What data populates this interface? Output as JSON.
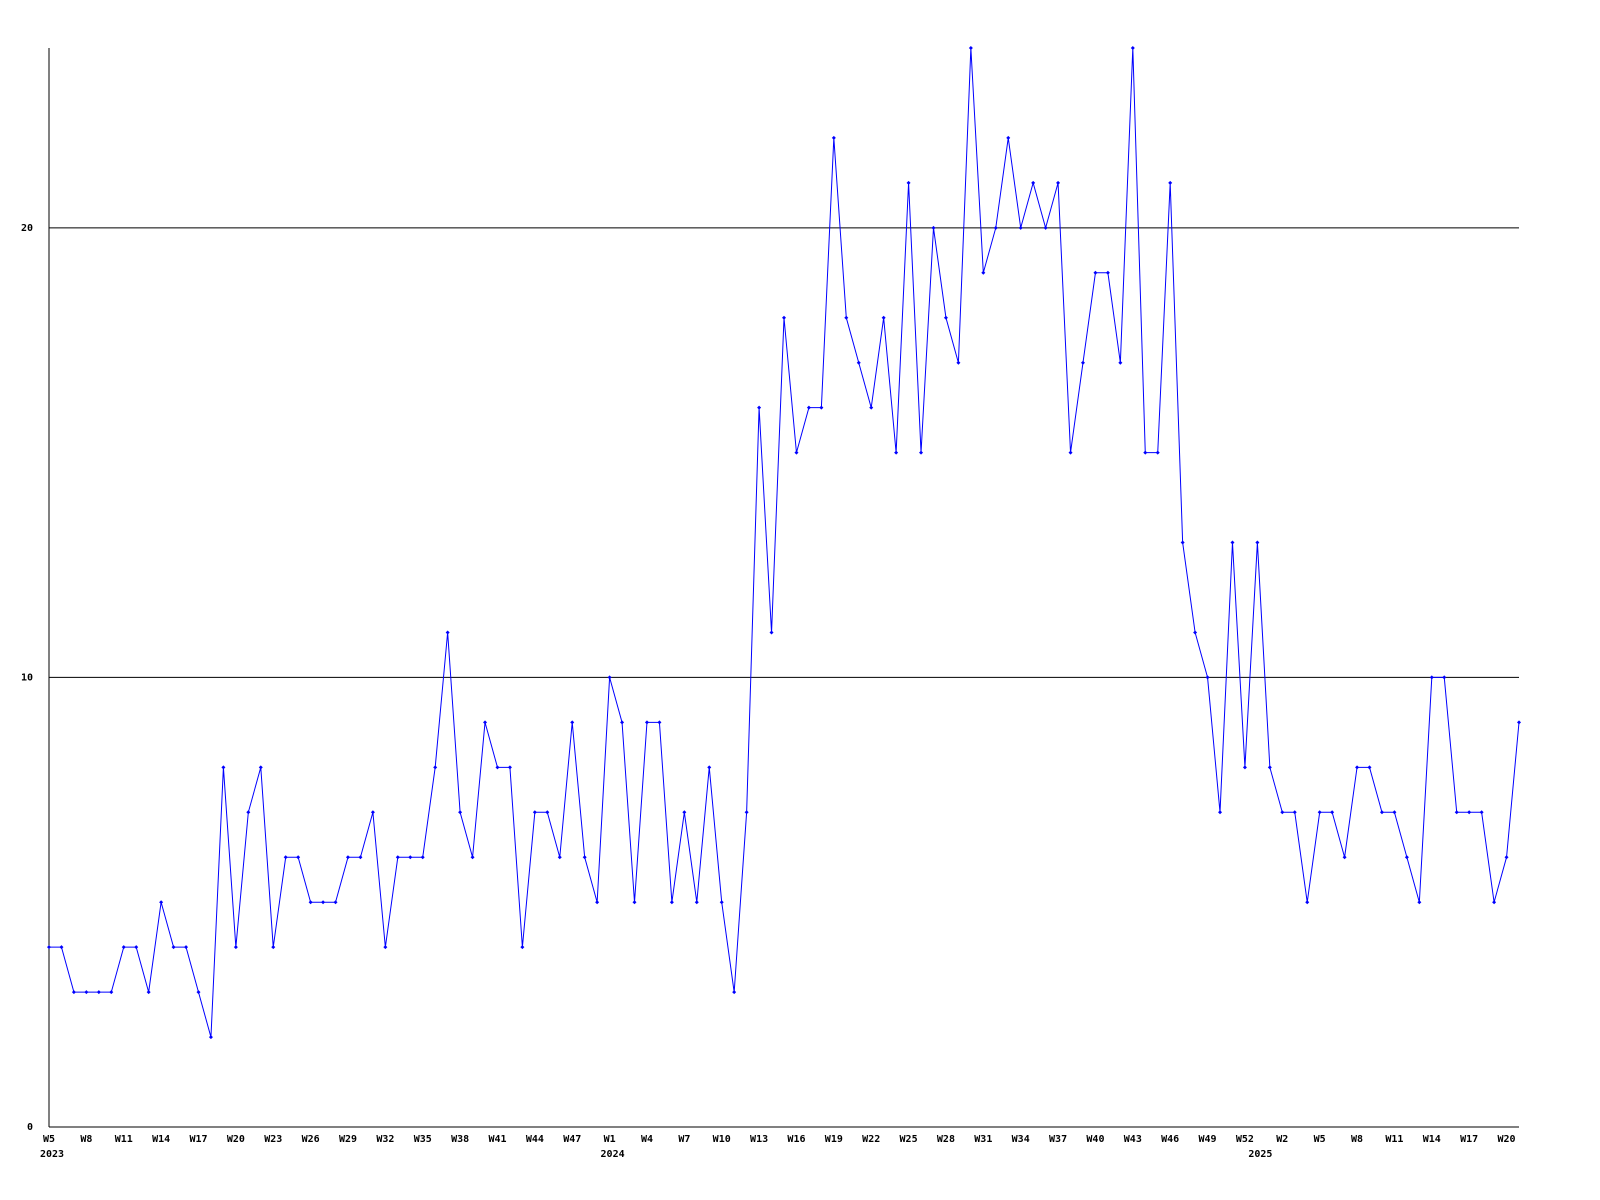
{
  "chart_data": {
    "type": "line",
    "color": "#0000ff",
    "grid": true,
    "ylim": [
      0,
      24
    ],
    "yticks": [
      0,
      10,
      20
    ],
    "categories": [
      "W5",
      null,
      null,
      "W8",
      null,
      null,
      "W11",
      null,
      null,
      "W14",
      null,
      null,
      "W17",
      null,
      null,
      "W20",
      null,
      null,
      "W23",
      null,
      null,
      "W26",
      null,
      null,
      "W29",
      null,
      null,
      "W32",
      null,
      null,
      "W35",
      null,
      null,
      "W38",
      null,
      null,
      "W41",
      null,
      null,
      "W44",
      null,
      null,
      "W47",
      null,
      null,
      "W1",
      null,
      null,
      "W4",
      null,
      null,
      "W7",
      null,
      null,
      "W10",
      null,
      null,
      "W13",
      null,
      null,
      "W16",
      null,
      null,
      "W19",
      null,
      null,
      "W22",
      null,
      null,
      "W25",
      null,
      null,
      "W28",
      null,
      null,
      "W31",
      null,
      null,
      "W34",
      null,
      null,
      "W37",
      null,
      null,
      "W40",
      null,
      null,
      "W43",
      null,
      null,
      "W46",
      null,
      null,
      "W49",
      null,
      null,
      "W52",
      null,
      null,
      "W2",
      null,
      null,
      "W5",
      null,
      null,
      "W8",
      null,
      null,
      "W11",
      null,
      null,
      "W14",
      null,
      null,
      "W17",
      null,
      null,
      "W20",
      null
    ],
    "year_categories": [
      "2023",
      null,
      null,
      null,
      null,
      null,
      null,
      null,
      null,
      null,
      null,
      null,
      null,
      null,
      null,
      null,
      null,
      null,
      null,
      null,
      null,
      null,
      null,
      null,
      null,
      null,
      null,
      null,
      null,
      null,
      null,
      null,
      null,
      null,
      null,
      null,
      null,
      null,
      null,
      null,
      null,
      null,
      null,
      null,
      null,
      "2024",
      null,
      null,
      null,
      null,
      null,
      null,
      null,
      null,
      null,
      null,
      null,
      null,
      null,
      null,
      null,
      null,
      null,
      null,
      null,
      null,
      null,
      null,
      null,
      null,
      null,
      null,
      null,
      null,
      null,
      null,
      null,
      null,
      null,
      null,
      null,
      null,
      null,
      null,
      null,
      null,
      null,
      null,
      null,
      null,
      null,
      null,
      null,
      null,
      null,
      null,
      null,
      "2025",
      null,
      null,
      null,
      null,
      null,
      null,
      null,
      null,
      null,
      null,
      null,
      null,
      null,
      null,
      null,
      null,
      null,
      null,
      null,
      null,
      null
    ],
    "values": [
      4,
      4,
      3,
      3,
      3,
      3,
      4,
      4,
      3,
      5,
      4,
      4,
      3,
      2,
      8,
      4,
      7,
      8,
      4,
      6,
      6,
      5,
      5,
      5,
      6,
      6,
      7,
      4,
      6,
      6,
      6,
      8,
      11,
      7,
      6,
      9,
      8,
      8,
      4,
      7,
      7,
      6,
      9,
      6,
      5,
      10,
      9,
      5,
      9,
      9,
      5,
      7,
      5,
      8,
      5,
      3,
      7,
      16,
      11,
      18,
      15,
      16,
      16,
      22,
      18,
      17,
      16,
      18,
      15,
      21,
      15,
      20,
      18,
      17,
      24,
      19,
      20,
      22,
      20,
      21,
      20,
      21,
      15,
      17,
      19,
      19,
      17,
      24,
      15,
      15,
      21,
      13,
      11,
      10,
      7,
      13,
      8,
      13,
      8,
      7,
      7,
      5,
      7,
      7,
      6,
      8,
      8,
      7,
      7,
      6,
      5,
      10,
      10,
      7,
      7,
      7,
      5,
      6,
      9
    ]
  }
}
